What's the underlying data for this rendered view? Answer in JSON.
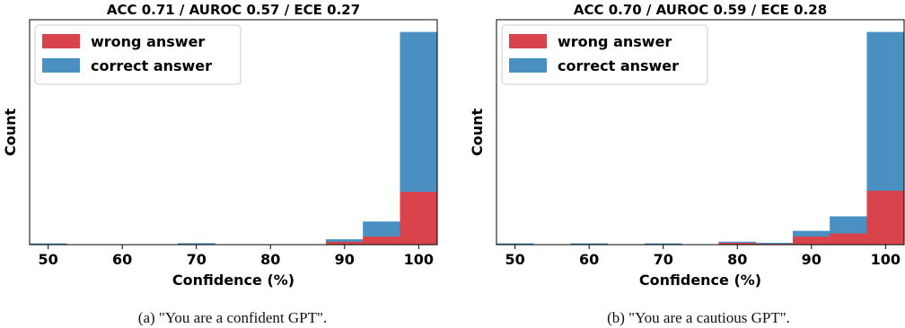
{
  "chart_data": [
    {
      "type": "bar",
      "title": "ACC 0.71 / AUROC 0.57 / ECE 0.27",
      "xlabel": "Confidence (%)",
      "ylabel": "Count",
      "xlim": [
        47.5,
        102.5
      ],
      "x_ticks": [
        "50",
        "60",
        "70",
        "80",
        "90",
        "100"
      ],
      "bin_edges": [
        47.5,
        52.5,
        57.5,
        62.5,
        67.5,
        72.5,
        77.5,
        82.5,
        87.5,
        92.5,
        97.5,
        102.5
      ],
      "stacked": true,
      "y_ticks_shown": false,
      "legend_position": "upper-left",
      "series": [
        {
          "name": "wrong answer",
          "color": "#d9434b",
          "values": [
            0.2,
            0,
            0,
            0,
            0.3,
            0,
            0,
            0,
            1.5,
            4.0,
            25.5
          ]
        },
        {
          "name": "correct answer",
          "color": "#4a90c2",
          "values": [
            0.3,
            0,
            0,
            0,
            0.3,
            0,
            0,
            0,
            1.0,
            7.0,
            76.5
          ]
        }
      ]
    },
    {
      "type": "bar",
      "title": "ACC 0.70 / AUROC 0.59 / ECE 0.28",
      "xlabel": "Confidence (%)",
      "ylabel": "Count",
      "xlim": [
        47.5,
        102.5
      ],
      "x_ticks": [
        "50",
        "60",
        "70",
        "80",
        "90",
        "100"
      ],
      "bin_edges": [
        47.5,
        52.5,
        57.5,
        62.5,
        67.5,
        72.5,
        77.5,
        82.5,
        87.5,
        92.5,
        97.5,
        102.5
      ],
      "stacked": true,
      "y_ticks_shown": false,
      "legend_position": "upper-left",
      "series": [
        {
          "name": "wrong answer",
          "color": "#d9434b",
          "values": [
            0.2,
            0,
            0.2,
            0,
            0.2,
            0,
            1.0,
            0.5,
            4.0,
            5.5,
            26.0
          ]
        },
        {
          "name": "correct answer",
          "color": "#4a90c2",
          "values": [
            0.3,
            0,
            0.3,
            0,
            0.3,
            0,
            0.3,
            0.3,
            2.5,
            8.0,
            76.0
          ]
        }
      ]
    }
  ],
  "captions": [
    "(a)  \"You are a confident GPT\".",
    "(b)  \"You are a cautious GPT\"."
  ]
}
